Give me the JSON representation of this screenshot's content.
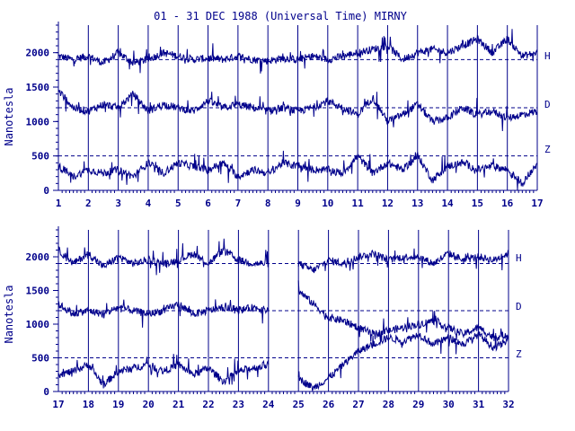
{
  "title": "01 - 31 DEC 1988 (Universal Time) MIRNY",
  "colors": {
    "ink": "#00008b",
    "background": "#ffffff"
  },
  "chart_data": [
    {
      "type": "line",
      "panel": "top",
      "ylabel": "Nanotesla",
      "xlim": [
        1,
        17
      ],
      "ylim": [
        0,
        2400
      ],
      "x_ticks": [
        "1",
        "2",
        "3",
        "4",
        "5",
        "6",
        "7",
        "8",
        "9",
        "10",
        "11",
        "12",
        "13",
        "14",
        "15",
        "16",
        "17"
      ],
      "y_ticks": [
        "0",
        "500",
        "1000",
        "1500",
        "2000"
      ],
      "baselines": [
        1900,
        1200,
        500
      ],
      "grid": "vertical lines at each day",
      "series": [
        {
          "name": "H",
          "x": [
            1,
            1.5,
            2,
            2.5,
            3,
            3.5,
            4,
            4.5,
            5,
            5.5,
            6,
            6.5,
            7,
            7.5,
            8,
            8.5,
            9,
            9.5,
            10,
            10.5,
            11,
            11.5,
            12,
            12.5,
            13,
            13.5,
            14,
            14.5,
            15,
            15.5,
            16,
            16.5,
            17
          ],
          "values": [
            1950,
            1900,
            1950,
            1850,
            2000,
            1850,
            1900,
            2000,
            1950,
            1900,
            1920,
            1900,
            1950,
            1900,
            1880,
            1920,
            1900,
            1950,
            1900,
            1950,
            2000,
            2050,
            2100,
            1900,
            2000,
            2050,
            2000,
            2100,
            2200,
            2000,
            2200,
            1950,
            2000
          ]
        },
        {
          "name": "D",
          "x": [
            1,
            1.5,
            2,
            2.5,
            3,
            3.5,
            4,
            4.5,
            5,
            5.5,
            6,
            6.5,
            7,
            7.5,
            8,
            8.5,
            9,
            9.5,
            10,
            10.5,
            11,
            11.5,
            12,
            12.5,
            13,
            13.5,
            14,
            14.5,
            15,
            15.5,
            16,
            16.5,
            17
          ],
          "values": [
            1450,
            1200,
            1150,
            1250,
            1200,
            1400,
            1150,
            1250,
            1200,
            1150,
            1300,
            1200,
            1250,
            1200,
            1150,
            1200,
            1150,
            1200,
            1300,
            1200,
            1100,
            1350,
            1000,
            1100,
            1250,
            1000,
            1050,
            1200,
            1100,
            1150,
            1050,
            1100,
            1150
          ]
        },
        {
          "name": "Z",
          "x": [
            1,
            1.5,
            2,
            2.5,
            3,
            3.5,
            4,
            4.5,
            5,
            5.5,
            6,
            6.5,
            7,
            7.5,
            8,
            8.5,
            9,
            9.5,
            10,
            10.5,
            11,
            11.5,
            12,
            12.5,
            13,
            13.5,
            14,
            14.5,
            15,
            15.5,
            16,
            16.5,
            17
          ],
          "values": [
            350,
            200,
            300,
            250,
            300,
            200,
            400,
            250,
            400,
            350,
            300,
            400,
            200,
            300,
            250,
            400,
            350,
            300,
            300,
            250,
            500,
            250,
            400,
            300,
            500,
            150,
            350,
            400,
            300,
            350,
            300,
            100,
            400
          ]
        }
      ]
    },
    {
      "type": "line",
      "panel": "bottom",
      "ylabel": "Nanotesla",
      "xlim": [
        17,
        32
      ],
      "ylim": [
        0,
        2400
      ],
      "x_ticks": [
        "17",
        "18",
        "19",
        "20",
        "21",
        "22",
        "23",
        "24",
        "25",
        "26",
        "27",
        "28",
        "29",
        "30",
        "31",
        "32"
      ],
      "y_ticks": [
        "0",
        "500",
        "1000",
        "1500",
        "2000"
      ],
      "baselines": [
        1900,
        1200,
        500
      ],
      "grid": "vertical lines at each day",
      "series": [
        {
          "name": "H",
          "x": [
            17,
            17.5,
            18,
            18.5,
            19,
            19.5,
            20,
            20.5,
            21,
            21.5,
            22,
            22.5,
            23,
            23.5,
            24,
            25,
            25.5,
            26,
            26.5,
            27,
            27.5,
            28,
            28.5,
            29,
            29.5,
            30,
            30.5,
            31,
            31.5,
            32
          ],
          "values": [
            2100,
            1900,
            2050,
            1850,
            2000,
            1900,
            1950,
            1900,
            1950,
            2050,
            1900,
            2100,
            1950,
            1900,
            1900,
            1900,
            1800,
            1950,
            1900,
            2000,
            2050,
            1950,
            2000,
            2000,
            1900,
            2050,
            1950,
            2000,
            1950,
            2050
          ]
        },
        {
          "name": "D",
          "x": [
            17,
            17.5,
            18,
            18.5,
            19,
            19.5,
            20,
            20.5,
            21,
            21.5,
            22,
            22.5,
            23,
            23.5,
            24,
            25,
            25.5,
            26,
            26.5,
            27,
            27.5,
            28,
            28.5,
            29,
            29.5,
            30,
            30.5,
            31,
            31.5,
            32
          ],
          "values": [
            1300,
            1150,
            1200,
            1150,
            1250,
            1200,
            1150,
            1200,
            1300,
            1150,
            1200,
            1250,
            1200,
            1250,
            1200,
            1500,
            1300,
            1100,
            1050,
            950,
            850,
            900,
            950,
            1000,
            1050,
            950,
            850,
            950,
            800,
            850
          ]
        },
        {
          "name": "Z",
          "x": [
            17,
            17.5,
            18,
            18.5,
            19,
            19.5,
            20,
            20.5,
            21,
            21.5,
            22,
            22.5,
            23,
            23.5,
            24,
            25,
            25.5,
            26,
            26.5,
            27,
            27.5,
            28,
            28.5,
            29,
            29.5,
            30,
            30.5,
            31,
            31.5,
            32
          ],
          "values": [
            250,
            300,
            400,
            100,
            300,
            350,
            400,
            300,
            400,
            250,
            350,
            150,
            300,
            350,
            400,
            200,
            50,
            200,
            400,
            600,
            700,
            800,
            750,
            850,
            700,
            800,
            700,
            850,
            650,
            750
          ]
        }
      ]
    }
  ]
}
